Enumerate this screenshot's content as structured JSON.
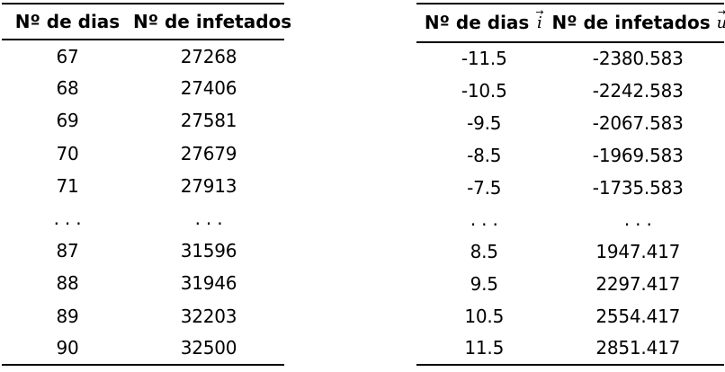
{
  "page": {
    "background_color": "#ffffff",
    "text_color": "#000000",
    "rule_color": "#000000"
  },
  "left_table": {
    "headers": [
      "Nº de dias",
      "Nº de infetados"
    ],
    "rows": [
      [
        "67",
        "27268"
      ],
      [
        "68",
        "27406"
      ],
      [
        "69",
        "27581"
      ],
      [
        "70",
        "27679"
      ],
      [
        "71",
        "27913"
      ],
      [
        ". . .",
        ". . ."
      ],
      [
        "87",
        "31596"
      ],
      [
        "88",
        "31946"
      ],
      [
        "89",
        "32203"
      ],
      [
        "90",
        "32500"
      ]
    ]
  },
  "right_table": {
    "col1_header": {
      "label": "Nº de dias",
      "vector_symbol": "i",
      "vector_arrow": "→"
    },
    "col2_header": {
      "label": "Nº de infetados",
      "vector_symbol": "u",
      "vector_arrow": "→"
    },
    "rows": [
      [
        "-11.5",
        "-2380.583"
      ],
      [
        "-10.5",
        "-2242.583"
      ],
      [
        "-9.5",
        "-2067.583"
      ],
      [
        "-8.5",
        "-1969.583"
      ],
      [
        "-7.5",
        "-1735.583"
      ],
      [
        ". . .",
        ". . ."
      ],
      [
        "8.5",
        "1947.417"
      ],
      [
        "9.5",
        "2297.417"
      ],
      [
        "10.5",
        "2554.417"
      ],
      [
        "11.5",
        "2851.417"
      ]
    ]
  }
}
